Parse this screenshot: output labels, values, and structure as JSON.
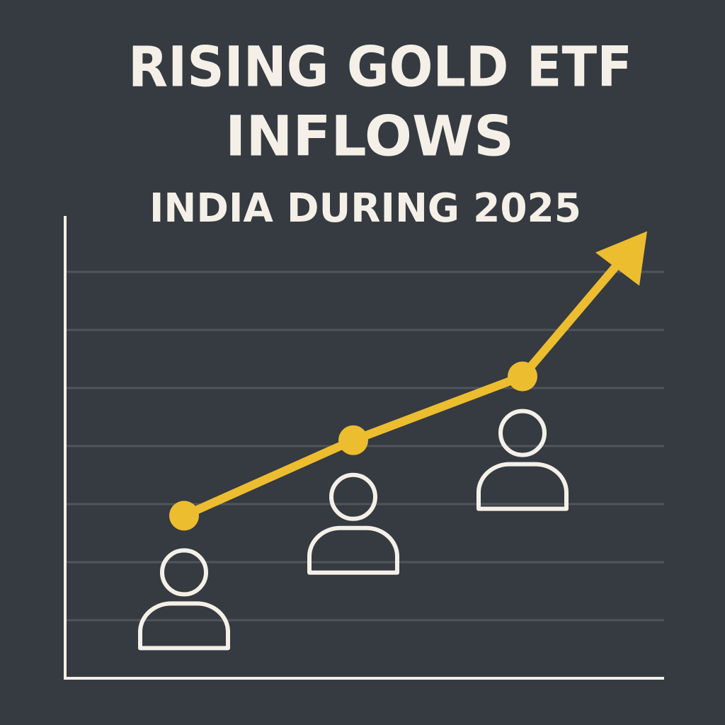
{
  "chart_data": {
    "type": "line",
    "title": [
      "RISING GOLD ETF",
      "INFLOWS"
    ],
    "subtitle": "INDIA DURING 2025",
    "categories": [
      null,
      null,
      null
    ],
    "values": [
      2.8,
      4.1,
      5.2
    ],
    "color": "#edbd30",
    "ylim": [
      0,
      8
    ],
    "yticks": [
      1,
      2,
      3,
      4,
      5,
      6,
      7
    ],
    "grid": true
  }
}
